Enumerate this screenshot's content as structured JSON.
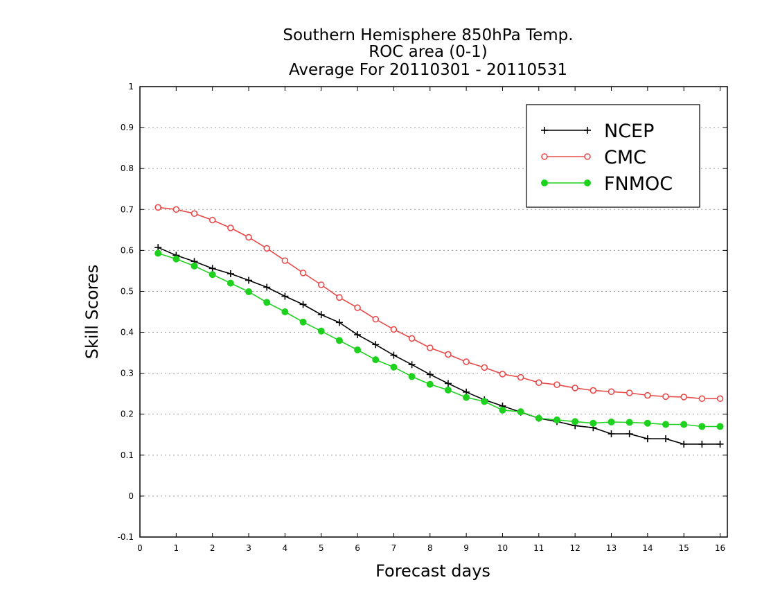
{
  "chart_data": {
    "type": "line",
    "title": [
      "Southern Hemisphere 850hPa Temp.",
      "ROC area (0-1)",
      "Average For 20110301 - 20110531"
    ],
    "xlabel": "Forecast days",
    "ylabel": "Skill Scores",
    "xlim": [
      0,
      16.2
    ],
    "ylim": [
      -0.1,
      1
    ],
    "xticks": [
      0,
      1,
      2,
      3,
      4,
      5,
      6,
      7,
      8,
      9,
      10,
      11,
      12,
      13,
      14,
      15,
      16
    ],
    "yticks": [
      -0.1,
      0,
      0.1,
      0.2,
      0.3,
      0.4,
      0.5,
      0.6,
      0.7,
      0.8,
      0.9,
      1
    ],
    "ytick_labels": [
      "-0.1",
      "0",
      "0.1",
      "0.2",
      "0.3",
      "0.4",
      "0.5",
      "0.6",
      "0.7",
      "0.8",
      "0.9",
      "1"
    ],
    "grid": "horizontal dotted",
    "legend_position": "top-right",
    "x": [
      0.5,
      1,
      1.5,
      2,
      2.5,
      3,
      3.5,
      4,
      4.5,
      5,
      5.5,
      6,
      6.5,
      7,
      7.5,
      8,
      8.5,
      9,
      9.5,
      10,
      10.5,
      11,
      11.5,
      12,
      12.5,
      13,
      13.5,
      14,
      14.5,
      15,
      15.5,
      16
    ],
    "series": [
      {
        "name": "NCEP",
        "color": "#000000",
        "marker": "plus",
        "values": [
          0.607,
          0.588,
          0.573,
          0.556,
          0.543,
          0.527,
          0.51,
          0.488,
          0.468,
          0.443,
          0.424,
          0.394,
          0.37,
          0.344,
          0.321,
          0.297,
          0.275,
          0.254,
          0.235,
          0.22,
          0.205,
          0.19,
          0.182,
          0.172,
          0.167,
          0.152,
          0.152,
          0.14,
          0.14,
          0.127,
          0.127,
          0.127
        ]
      },
      {
        "name": "CMC",
        "color": "#e84a4a",
        "marker": "open-circle",
        "values": [
          0.705,
          0.7,
          0.69,
          0.674,
          0.655,
          0.632,
          0.605,
          0.575,
          0.545,
          0.516,
          0.485,
          0.46,
          0.432,
          0.407,
          0.385,
          0.362,
          0.346,
          0.328,
          0.314,
          0.298,
          0.29,
          0.277,
          0.272,
          0.264,
          0.258,
          0.255,
          0.252,
          0.246,
          0.243,
          0.242,
          0.238,
          0.238
        ]
      },
      {
        "name": "FNMOC",
        "color": "#1fd11f",
        "marker": "filled-circle",
        "values": [
          0.593,
          0.579,
          0.562,
          0.541,
          0.52,
          0.499,
          0.473,
          0.45,
          0.425,
          0.403,
          0.38,
          0.357,
          0.333,
          0.315,
          0.292,
          0.273,
          0.259,
          0.241,
          0.231,
          0.21,
          0.206,
          0.19,
          0.186,
          0.182,
          0.178,
          0.181,
          0.18,
          0.178,
          0.175,
          0.175,
          0.17,
          0.17
        ]
      }
    ]
  }
}
